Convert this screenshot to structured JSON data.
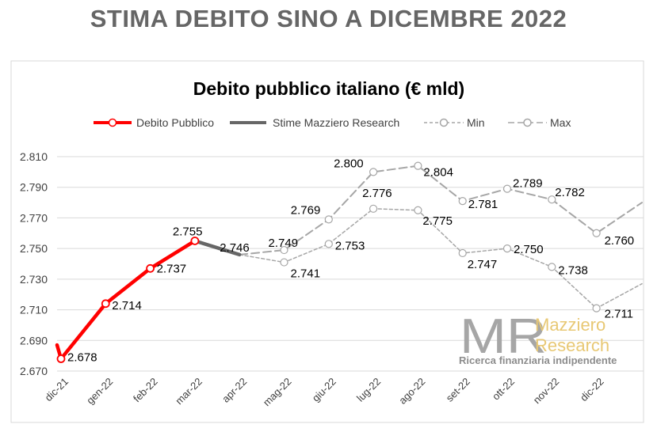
{
  "page": {
    "title": "STIMA DEBITO SINO A DICEMBRE 2022"
  },
  "watermark": {
    "logo_letters": "MR",
    "brand_line1": "Mazziero",
    "brand_line2": "Research",
    "tagline": "Ricerca finanziaria indipendente"
  },
  "chart_data": {
    "type": "line",
    "title": "Debito pubblico italiano (€ mld)",
    "xlabel": "",
    "ylabel": "",
    "categories": [
      "dic-21",
      "gen-22",
      "feb-22",
      "mar-22",
      "apr-22",
      "mag-22",
      "giu-22",
      "lug-22",
      "ago-22",
      "set-22",
      "ott-22",
      "nov-22",
      "dic-22"
    ],
    "ylim": [
      2670,
      2810
    ],
    "yticks": [
      2670,
      2690,
      2710,
      2730,
      2750,
      2770,
      2790,
      2810
    ],
    "ytick_labels": [
      "2.670",
      "2.690",
      "2.710",
      "2.730",
      "2.750",
      "2.770",
      "2.790",
      "2.810"
    ],
    "grid": true,
    "legend_position": "top",
    "series": [
      {
        "name": "Debito Pubblico",
        "color": "#ff0000",
        "style": "solid",
        "values": [
          2678,
          2714,
          2737,
          2755,
          null,
          null,
          null,
          null,
          null,
          null,
          null,
          null,
          null
        ],
        "labels": [
          "2.678",
          "2.714",
          "2.737",
          "2.755",
          null,
          null,
          null,
          null,
          null,
          null,
          null,
          null,
          null
        ]
      },
      {
        "name": "Stime Mazziero Research",
        "color": "#666666",
        "style": "solid",
        "values": [
          null,
          null,
          null,
          2755,
          2746,
          null,
          null,
          null,
          null,
          null,
          null,
          null,
          null
        ],
        "labels": [
          null,
          null,
          null,
          null,
          "2.746",
          null,
          null,
          null,
          null,
          null,
          null,
          null,
          null
        ]
      },
      {
        "name": "Min",
        "color": "#a6a6a6",
        "style": "dotted",
        "values": [
          null,
          null,
          null,
          null,
          2746,
          2741,
          2753,
          2776,
          2775,
          2747,
          2750,
          2738,
          2711
        ],
        "labels": [
          null,
          null,
          null,
          null,
          null,
          "2.741",
          "2.753",
          "2.776",
          "2.775",
          "2.747",
          "2.750",
          "2.738",
          "2.711"
        ]
      },
      {
        "name": "Max",
        "color": "#a6a6a6",
        "style": "dashed",
        "values": [
          null,
          null,
          null,
          null,
          2746,
          2749,
          2769,
          2800,
          2804,
          2781,
          2789,
          2782,
          2760
        ],
        "labels": [
          null,
          null,
          null,
          null,
          null,
          "2.749",
          "2.769",
          "2.800",
          "2.804",
          "2.781",
          "2.789",
          "2.782",
          "2.760"
        ]
      }
    ]
  }
}
